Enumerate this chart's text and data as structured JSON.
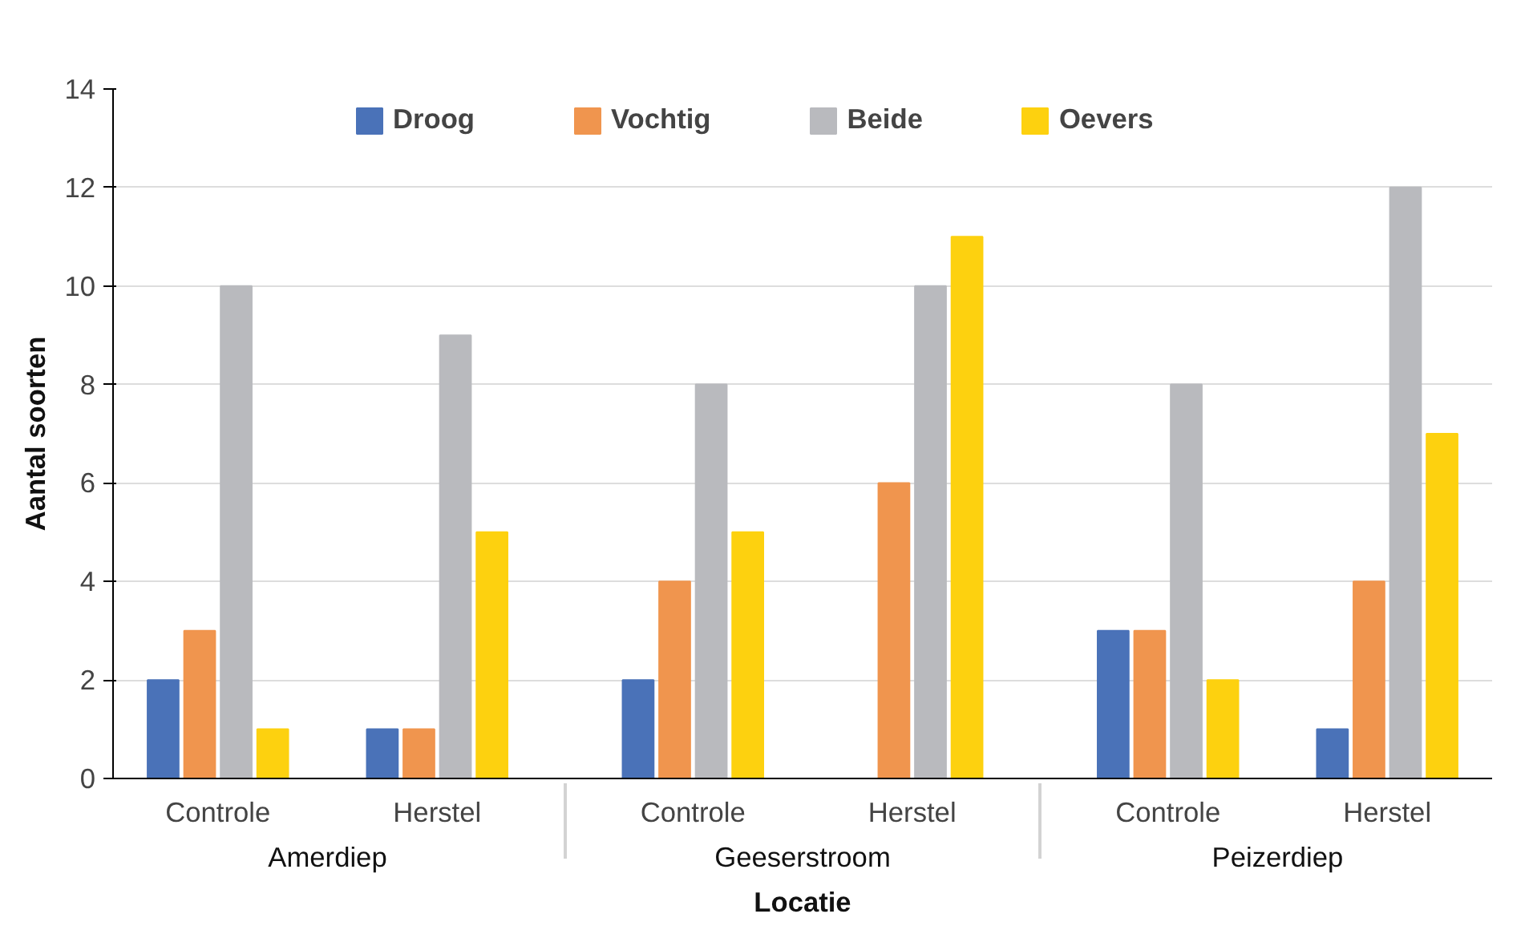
{
  "chart_data": {
    "type": "bar",
    "xlabel": "Locatie",
    "ylabel": "Aantal soorten",
    "categories": [
      "Controle",
      "Herstel",
      "Controle",
      "Herstel",
      "Controle",
      "Herstel"
    ],
    "annotations": [
      "Amerdiep",
      "Geeserstroom",
      "Peizerdiep"
    ],
    "series": [
      {
        "name": "Droog",
        "color": "#4a72b8",
        "values": [
          2,
          1,
          2,
          0,
          3,
          1
        ]
      },
      {
        "name": "Vochtig",
        "color": "#f0954e",
        "values": [
          3,
          1,
          4,
          6,
          3,
          4
        ]
      },
      {
        "name": "Beide",
        "color": "#b9babe",
        "values": [
          10,
          9,
          8,
          10,
          8,
          12
        ]
      },
      {
        "name": "Oevers",
        "color": "#fdd10f",
        "values": [
          1,
          5,
          5,
          11,
          2,
          7
        ]
      }
    ],
    "ylim": [
      0,
      14
    ],
    "yticks": [
      0,
      2,
      4,
      6,
      8,
      10,
      12,
      14
    ],
    "grid": "y",
    "legend": "top"
  }
}
